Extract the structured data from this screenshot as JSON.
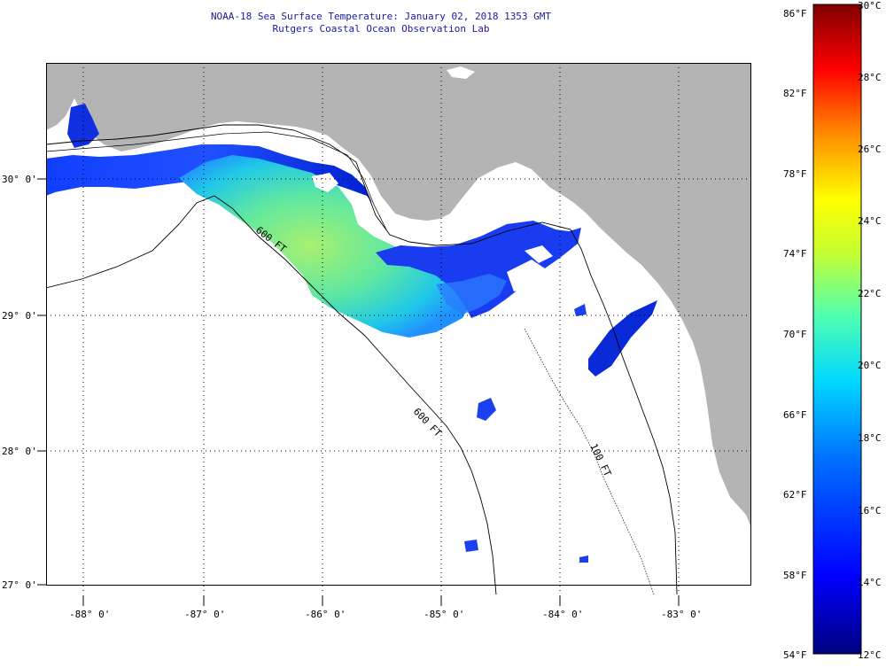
{
  "header": {
    "title_line1": "NOAA-18 Sea Surface Temperature:  January 02, 2018 1353 GMT",
    "title_line2": "Rutgers Coastal Ocean Observation Lab"
  },
  "map": {
    "lat_labels": [
      "30° 0'",
      "29° 0'",
      "28° 0'",
      "27° 0'"
    ],
    "lon_labels": [
      "-88° 0'",
      "-87° 0'",
      "-86° 0'",
      "-85° 0'",
      "-84° 0'",
      "-83° 0'"
    ],
    "contour_labels": [
      "600 FT",
      "600 FT",
      "100 FT"
    ],
    "colors": {
      "land": "#b4b4b4",
      "ocean": "#ffffff",
      "grid": "#000000"
    }
  },
  "colorbar": {
    "fahrenheit_labels": [
      "86°F",
      "82°F",
      "78°F",
      "74°F",
      "70°F",
      "66°F",
      "62°F",
      "58°F",
      "54°F"
    ],
    "celsius_labels": [
      "30°C",
      "28°C",
      "26°C",
      "24°C",
      "22°C",
      "20°C",
      "18°C",
      "16°C",
      "14°C",
      "12°C"
    ],
    "stops": [
      "#00007f",
      "#0000ff",
      "#0060ff",
      "#00c8ff",
      "#7fff7f",
      "#ffff00",
      "#ff9000",
      "#ff0000",
      "#800000"
    ]
  }
}
